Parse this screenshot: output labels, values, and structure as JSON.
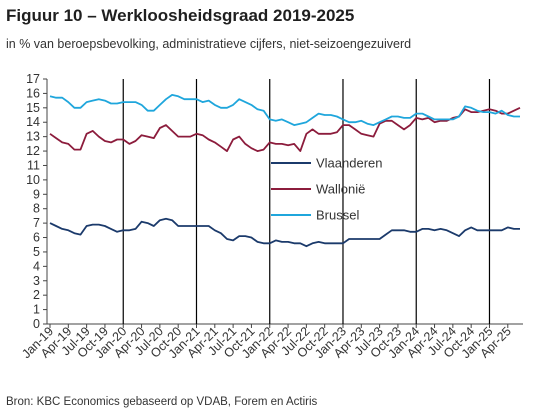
{
  "title": "Figuur 10 – Werkloosheidsgraad 2019-2025",
  "subtitle": "in  % van beroepsbevolking, administratieve cijfers, niet-seizoengezuiverd",
  "source": "Bron: KBC Economics gebaseerd op VDAB, Forem en Actiris",
  "colors": {
    "Vlaanderen": "#1b3a6b",
    "Wallonië": "#8c1c3c",
    "Brussel": "#1fa6dc"
  },
  "chart_data": {
    "type": "line",
    "title": "Figuur 10 – Werkloosheidsgraad 2019-2025",
    "subtitle": "in  % van beroepsbevolking, administratieve cijfers, niet-seizoengezuiverd",
    "ylim": [
      0,
      17
    ],
    "yticks": [
      "0",
      "1",
      "2",
      "3",
      "4",
      "5",
      "6",
      "7",
      "8",
      "9",
      "10",
      "11",
      "12",
      "13",
      "14",
      "15",
      "16",
      "17"
    ],
    "xticks": [
      "Jan-19",
      "Apr-19",
      "Jul-19",
      "Oct-19",
      "Jan-20",
      "Apr-20",
      "Jul-20",
      "Oct-20",
      "Jan-21",
      "Apr-21",
      "Jul-21",
      "Oct-21",
      "Jan-22",
      "Apr-22",
      "Jul-22",
      "Oct-22",
      "Jan-23",
      "Apr-23",
      "Jul-23",
      "Oct-23",
      "Jan-24",
      "Apr-24",
      "Jul-24",
      "Oct-24",
      "Jan-25",
      "Apr-25"
    ],
    "year_separators": [
      "Jan-20",
      "Jan-21",
      "Jan-22",
      "Jan-23",
      "Jan-24",
      "Jan-25"
    ],
    "grid": false,
    "legend": "center-right",
    "series": [
      {
        "name": "Vlaanderen",
        "values": [
          7.0,
          6.8,
          6.6,
          6.5,
          6.3,
          6.2,
          6.8,
          6.9,
          6.9,
          6.8,
          6.6,
          6.4,
          6.5,
          6.5,
          6.6,
          7.1,
          7.0,
          6.8,
          7.2,
          7.3,
          7.2,
          6.8,
          6.8,
          6.8,
          6.8,
          6.8,
          6.8,
          6.5,
          6.3,
          5.9,
          5.8,
          6.1,
          6.1,
          6.0,
          5.7,
          5.6,
          5.6,
          5.8,
          5.7,
          5.7,
          5.6,
          5.6,
          5.4,
          5.6,
          5.7,
          5.6,
          5.6,
          5.6,
          5.6,
          5.9,
          5.9,
          5.9,
          5.9,
          5.9,
          5.9,
          6.2,
          6.5,
          6.5,
          6.5,
          6.4,
          6.4,
          6.6,
          6.6,
          6.5,
          6.6,
          6.5,
          6.3,
          6.1,
          6.5,
          6.7,
          6.5,
          6.5,
          6.5,
          6.5,
          6.5,
          6.7,
          6.6,
          6.6
        ]
      },
      {
        "name": "Wallonië",
        "values": [
          13.2,
          12.9,
          12.6,
          12.5,
          12.1,
          12.1,
          13.2,
          13.4,
          13.0,
          12.7,
          12.6,
          12.8,
          12.8,
          12.5,
          12.7,
          13.1,
          13.0,
          12.9,
          13.6,
          13.8,
          13.4,
          13.0,
          13.0,
          13.0,
          13.2,
          13.1,
          12.8,
          12.6,
          12.3,
          12.0,
          12.8,
          13.0,
          12.5,
          12.2,
          12.0,
          12.1,
          12.6,
          12.5,
          12.5,
          12.4,
          12.5,
          12.0,
          13.2,
          13.5,
          13.2,
          13.2,
          13.2,
          13.3,
          13.8,
          13.8,
          13.5,
          13.2,
          13.1,
          13.0,
          13.9,
          14.1,
          14.1,
          13.8,
          13.5,
          13.8,
          14.3,
          14.2,
          14.3,
          14.0,
          14.1,
          14.1,
          14.3,
          14.4,
          14.9,
          14.7,
          14.7,
          14.8,
          14.9,
          14.8,
          14.6,
          14.6,
          14.8,
          15.0
        ]
      },
      {
        "name": "Brussel",
        "values": [
          15.8,
          15.7,
          15.7,
          15.4,
          15.0,
          15.0,
          15.4,
          15.5,
          15.6,
          15.5,
          15.3,
          15.3,
          15.4,
          15.4,
          15.4,
          15.2,
          14.8,
          14.8,
          15.2,
          15.6,
          15.9,
          15.8,
          15.6,
          15.6,
          15.6,
          15.4,
          15.5,
          15.2,
          15.0,
          15.0,
          15.2,
          15.6,
          15.4,
          15.2,
          14.9,
          14.8,
          14.2,
          14.1,
          14.2,
          14.0,
          13.8,
          13.9,
          14.0,
          14.3,
          14.6,
          14.5,
          14.5,
          14.4,
          14.2,
          14.0,
          14.0,
          14.1,
          13.9,
          13.8,
          14.0,
          14.2,
          14.4,
          14.4,
          14.3,
          14.3,
          14.6,
          14.6,
          14.4,
          14.2,
          14.2,
          14.2,
          14.2,
          14.4,
          15.1,
          15.0,
          14.8,
          14.7,
          14.7,
          14.6,
          14.8,
          14.5,
          14.4,
          14.4
        ]
      }
    ]
  }
}
